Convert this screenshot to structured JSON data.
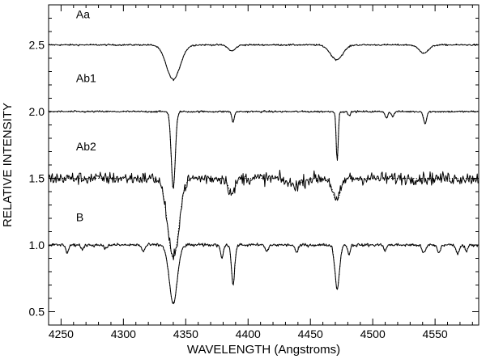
{
  "chart_data": {
    "type": "line",
    "title": "",
    "xlabel": "WAVELENGTH (Angstroms)",
    "ylabel": "RELATIVE INTENSITY",
    "xlim": [
      4240,
      4585
    ],
    "ylim": [
      0.4,
      2.8
    ],
    "xticks": [
      4250,
      4300,
      4350,
      4400,
      4450,
      4500,
      4550
    ],
    "yticks": [
      0.5,
      1.0,
      1.5,
      2.0,
      2.5
    ],
    "ytick_labels": [
      "0.5",
      "1.0",
      "1.5",
      "2.0",
      "2.5"
    ],
    "grid": false,
    "legend": "none",
    "line_styles": {
      "observed": "solid",
      "model": "dotted"
    },
    "series": [
      {
        "name": "Aa",
        "continuum": 2.5,
        "label_at": [
          4262,
          2.7
        ],
        "noise": 0.006,
        "lines": [
          {
            "center": 4340,
            "depth": 0.26,
            "width": 5.5
          },
          {
            "center": 4387,
            "depth": 0.045,
            "width": 3
          },
          {
            "center": 4471,
            "depth": 0.11,
            "width": 5
          },
          {
            "center": 4541,
            "depth": 0.06,
            "width": 4
          }
        ]
      },
      {
        "name": "Ab1",
        "continuum": 2.0,
        "label_at": [
          4262,
          2.22
        ],
        "noise": 0.007,
        "lines": [
          {
            "center": 4340,
            "depth": 0.58,
            "width": 1.6
          },
          {
            "center": 4388,
            "depth": 0.08,
            "width": 1.0
          },
          {
            "center": 4471.5,
            "depth": 0.37,
            "width": 0.8
          },
          {
            "center": 4481,
            "depth": 0.03,
            "width": 1.0
          },
          {
            "center": 4511,
            "depth": 0.05,
            "width": 1.0
          },
          {
            "center": 4516,
            "depth": 0.04,
            "width": 1.0
          },
          {
            "center": 4542,
            "depth": 0.09,
            "width": 1.2
          }
        ]
      },
      {
        "name": "Ab2",
        "continuum": 1.5,
        "label_at": [
          4262,
          1.71
        ],
        "noise": 0.045,
        "lines": [
          {
            "center": 4340,
            "depth": 0.6,
            "width": 4.5
          },
          {
            "center": 4387,
            "depth": 0.12,
            "width": 2.5
          },
          {
            "center": 4471,
            "depth": 0.17,
            "width": 3.0
          },
          {
            "center": 4437,
            "depth": 0.05,
            "width": 6
          }
        ]
      },
      {
        "name": "B",
        "continuum": 1.0,
        "label_at": [
          4262,
          1.18
        ],
        "noise": 0.012,
        "lines": [
          {
            "center": 4340,
            "depth": 0.44,
            "width": 3.2
          },
          {
            "center": 4255,
            "depth": 0.06,
            "width": 1
          },
          {
            "center": 4267,
            "depth": 0.04,
            "width": 1
          },
          {
            "center": 4286,
            "depth": 0.03,
            "width": 1
          },
          {
            "center": 4316,
            "depth": 0.05,
            "width": 1.2
          },
          {
            "center": 4379,
            "depth": 0.1,
            "width": 1
          },
          {
            "center": 4388,
            "depth": 0.3,
            "width": 1.3
          },
          {
            "center": 4415,
            "depth": 0.05,
            "width": 1.2
          },
          {
            "center": 4439,
            "depth": 0.06,
            "width": 1.2
          },
          {
            "center": 4471.5,
            "depth": 0.33,
            "width": 1.8
          },
          {
            "center": 4481,
            "depth": 0.07,
            "width": 1
          },
          {
            "center": 4510,
            "depth": 0.04,
            "width": 1
          },
          {
            "center": 4541,
            "depth": 0.06,
            "width": 1.5
          },
          {
            "center": 4553,
            "depth": 0.06,
            "width": 1.2
          },
          {
            "center": 4568,
            "depth": 0.07,
            "width": 1.2
          },
          {
            "center": 4575,
            "depth": 0.05,
            "width": 1
          }
        ]
      }
    ]
  }
}
